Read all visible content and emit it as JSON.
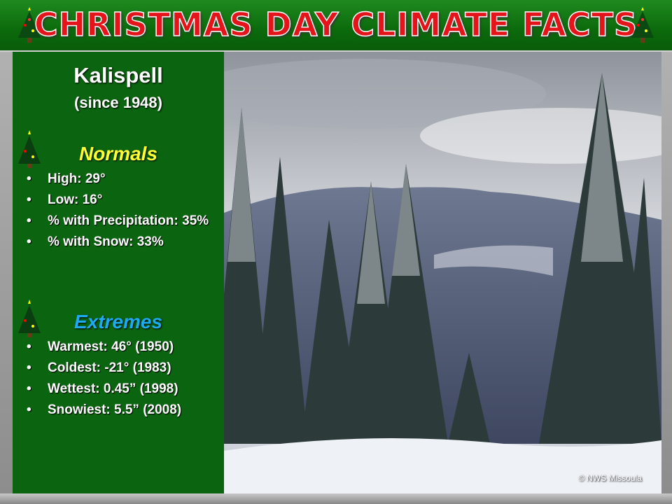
{
  "header": {
    "title": "CHRISTMAS DAY CLIMATE FACTS"
  },
  "panel": {
    "location": "Kalispell",
    "since": "(since 1948)",
    "sections": [
      {
        "title": "Normals",
        "items": [
          "High: 29°",
          "Low: 16°",
          "% with Precipitation: 35%",
          "% with Snow: 33%"
        ]
      },
      {
        "title": "Extremes",
        "items": [
          "Warmest: 46° (1950)",
          "Coldest: -21° (1983)",
          "Wettest: 0.45” (1998)",
          "Snowiest: 5.5” (2008)"
        ]
      }
    ]
  },
  "photo": {
    "credit": "© NWS Missoula"
  }
}
